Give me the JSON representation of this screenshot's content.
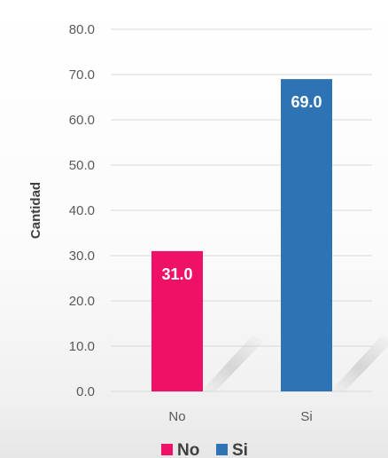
{
  "chart_data": {
    "type": "bar",
    "categories": [
      "No",
      "Si"
    ],
    "values": [
      31.0,
      69.0
    ],
    "data_labels": [
      "31.0",
      "69.0"
    ],
    "colors": [
      "#ee1166",
      "#2e74b5"
    ],
    "title": "",
    "xlabel": "",
    "ylabel": "Cantidad",
    "ylim": [
      0,
      80
    ],
    "yticks": [
      0,
      10,
      20,
      30,
      40,
      50,
      60,
      70,
      80
    ],
    "ytick_labels": [
      "0.0",
      "10.0",
      "20.0",
      "30.0",
      "40.0",
      "50.0",
      "60.0",
      "70.0",
      "80.0"
    ],
    "grid": true,
    "legend": {
      "placement": "bottom",
      "entries": [
        {
          "label": "No",
          "color": "#ee1166"
        },
        {
          "label": "Si",
          "color": "#2e74b5"
        }
      ]
    }
  }
}
